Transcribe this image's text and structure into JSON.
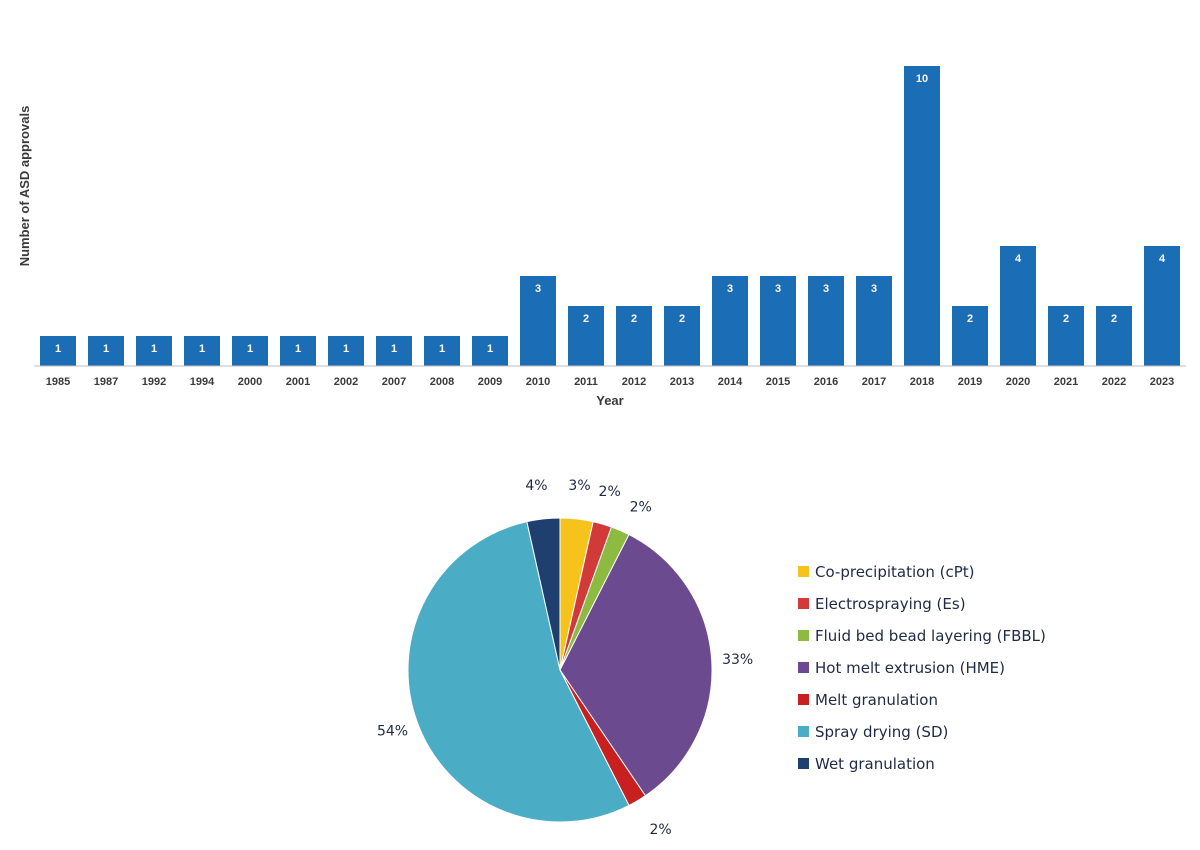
{
  "chart_data": [
    {
      "type": "bar",
      "title": "",
      "xlabel": "Year",
      "ylabel": "Number of ASD approvals",
      "ylim": [
        0,
        10
      ],
      "grid": false,
      "categories": [
        "1985",
        "1987",
        "1992",
        "1994",
        "2000",
        "2001",
        "2002",
        "2007",
        "2008",
        "2009",
        "2010",
        "2011",
        "2012",
        "2013",
        "2014",
        "2015",
        "2016",
        "2017",
        "2018",
        "2019",
        "2020",
        "2021",
        "2022",
        "2023"
      ],
      "values": [
        1,
        1,
        1,
        1,
        1,
        1,
        1,
        1,
        1,
        1,
        3,
        2,
        2,
        2,
        3,
        3,
        3,
        3,
        10,
        2,
        4,
        2,
        2,
        4
      ],
      "data_labels": [
        "1",
        "1",
        "1",
        "1",
        "1",
        "1",
        "1",
        "1",
        "1",
        "1",
        "3",
        "2",
        "2",
        "2",
        "3",
        "3",
        "3",
        "3",
        "10",
        "2",
        "4",
        "2",
        "2",
        "4"
      ],
      "colors": {
        "bar": "#1b6db5"
      }
    },
    {
      "type": "pie",
      "title": "",
      "legend_position": "right",
      "slices": [
        {
          "name": "Co-precipitation (cPt)",
          "value": 3.5,
          "label": "3%",
          "color": "#f6c31d"
        },
        {
          "name": "Electrospraying (Es)",
          "value": 2,
          "label": "2%",
          "color": "#d23a3a"
        },
        {
          "name": "Fluid bed bead layering (FBBL)",
          "value": 2,
          "label": "2%",
          "color": "#8dbb41"
        },
        {
          "name": "Hot melt extrusion (HME)",
          "value": 33,
          "label": "33%",
          "color": "#6b4a90"
        },
        {
          "name": "Melt granulation",
          "value": 2,
          "label": "2%",
          "color": "#c82020"
        },
        {
          "name": "Spray drying (SD)",
          "value": 54,
          "label": "54%",
          "color": "#4bacc6"
        },
        {
          "name": "Wet granulation",
          "value": 3.5,
          "label": "4%",
          "color": "#1f3f6e"
        }
      ]
    }
  ]
}
